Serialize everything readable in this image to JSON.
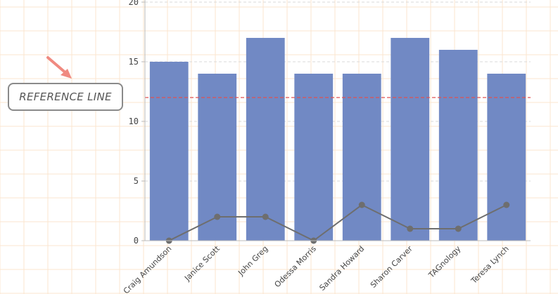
{
  "chart_data": {
    "type": "bar",
    "categories": [
      "Craig Amundson",
      "Janice Scott",
      "John Greg",
      "Odessa Morris",
      "Sandra Howard",
      "Sharon Carver",
      "TAGnology",
      "Teresa Lynch"
    ],
    "series": [
      {
        "type": "bar",
        "values": [
          15,
          14,
          17,
          14,
          14,
          17,
          16,
          14
        ]
      },
      {
        "type": "line",
        "values": [
          0,
          2,
          2,
          0,
          3,
          1,
          1,
          3
        ]
      }
    ],
    "reference_line": {
      "value": 12,
      "label": "REFERENCE LINE"
    },
    "ylim": [
      0,
      20
    ],
    "yticks": [
      0,
      5,
      10,
      15,
      20
    ],
    "grid": true,
    "title": "",
    "xlabel": "",
    "ylabel": ""
  },
  "colors": {
    "bar": "#7189c4",
    "line": "#6e6e6e",
    "reference": "#e05252",
    "arrow": "#f08a80",
    "gridline": "#d9d9d9",
    "background_grid": "#fbe6cf"
  },
  "annotation": {
    "icon": "arrow-icon"
  }
}
